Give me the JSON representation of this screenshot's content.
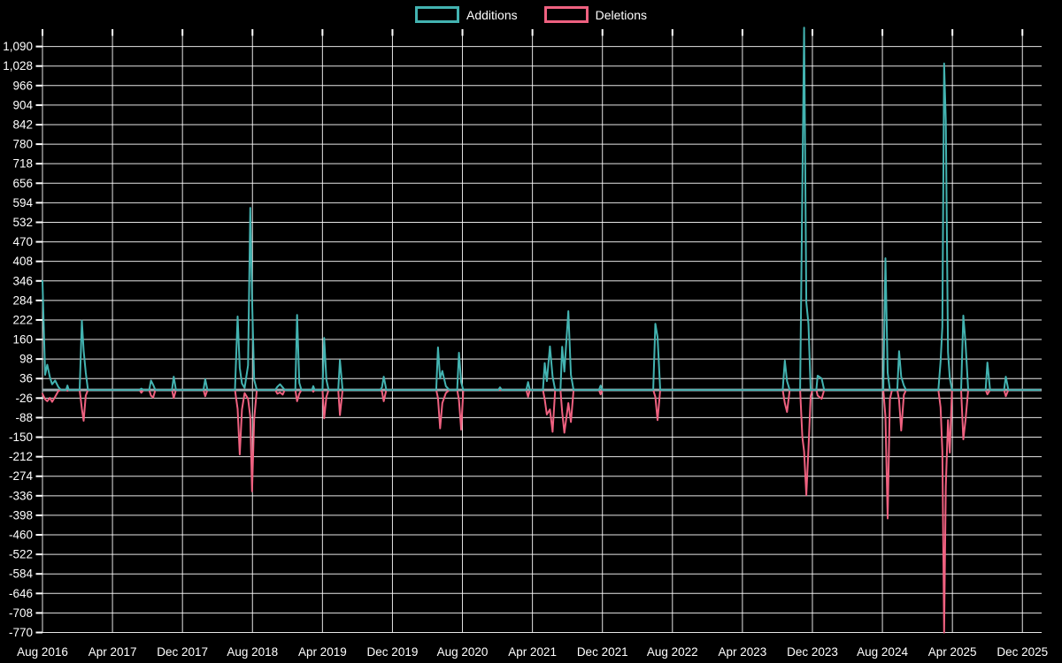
{
  "chart_data": {
    "type": "line",
    "title": "",
    "legend": {
      "position": "top",
      "items": [
        "Additions",
        "Deletions"
      ]
    },
    "grid": {
      "show": true,
      "color": "#ffffff"
    },
    "baseline": {
      "value": 0,
      "color": "#97a8ad"
    },
    "x_axis": {
      "unit": "months since Aug 2016",
      "range": [
        0,
        114.2
      ],
      "ticks": [
        {
          "m": 0,
          "label": "Aug 2016"
        },
        {
          "m": 8,
          "label": "Apr 2017"
        },
        {
          "m": 16,
          "label": "Dec 2017"
        },
        {
          "m": 24,
          "label": "Aug 2018"
        },
        {
          "m": 32,
          "label": "Apr 2019"
        },
        {
          "m": 40,
          "label": "Dec 2019"
        },
        {
          "m": 48,
          "label": "Aug 2020"
        },
        {
          "m": 56,
          "label": "Apr 2021"
        },
        {
          "m": 64,
          "label": "Dec 2021"
        },
        {
          "m": 72,
          "label": "Aug 2022"
        },
        {
          "m": 80,
          "label": "Apr 2023"
        },
        {
          "m": 88,
          "label": "Dec 2023"
        },
        {
          "m": 96,
          "label": "Aug 2024"
        },
        {
          "m": 104,
          "label": "Apr 2025"
        },
        {
          "m": 112,
          "label": "Dec 2025"
        }
      ]
    },
    "y_axis": {
      "range": [
        -770,
        1145
      ],
      "ticks": [
        {
          "v": 1090,
          "label": "1,090"
        },
        {
          "v": 1028,
          "label": "1,028"
        },
        {
          "v": 966,
          "label": "966"
        },
        {
          "v": 904,
          "label": "904"
        },
        {
          "v": 842,
          "label": "842"
        },
        {
          "v": 780,
          "label": "780"
        },
        {
          "v": 718,
          "label": "718"
        },
        {
          "v": 656,
          "label": "656"
        },
        {
          "v": 594,
          "label": "594"
        },
        {
          "v": 532,
          "label": "532"
        },
        {
          "v": 470,
          "label": "470"
        },
        {
          "v": 408,
          "label": "408"
        },
        {
          "v": 346,
          "label": "346"
        },
        {
          "v": 284,
          "label": "284"
        },
        {
          "v": 222,
          "label": "222"
        },
        {
          "v": 160,
          "label": "160"
        },
        {
          "v": 98,
          "label": "98"
        },
        {
          "v": 36,
          "label": "36"
        },
        {
          "v": -26,
          "label": "-26"
        },
        {
          "v": -88,
          "label": "-88"
        },
        {
          "v": -150,
          "label": "-150"
        },
        {
          "v": -212,
          "label": "-212"
        },
        {
          "v": -274,
          "label": "-274"
        },
        {
          "v": -336,
          "label": "-336"
        },
        {
          "v": -398,
          "label": "-398"
        },
        {
          "v": -460,
          "label": "-460"
        },
        {
          "v": -522,
          "label": "-522"
        },
        {
          "v": -584,
          "label": "-584"
        },
        {
          "v": -646,
          "label": "-646"
        },
        {
          "v": -708,
          "label": "-708"
        },
        {
          "v": -770,
          "label": "-770"
        }
      ]
    },
    "series": [
      {
        "name": "Additions",
        "color": "#43b3b1",
        "sample_index": 1
      },
      {
        "name": "Deletions",
        "color": "#ef6180",
        "sample_index": 2
      }
    ],
    "samples_format": [
      "months_since_aug_2016",
      "additions",
      "deletions"
    ],
    "samples": [
      [
        0.0,
        346,
        -12
      ],
      [
        0.3,
        48,
        -30
      ],
      [
        0.55,
        80,
        -36
      ],
      [
        0.85,
        40,
        -25
      ],
      [
        1.1,
        18,
        -38
      ],
      [
        1.45,
        30,
        -22
      ],
      [
        1.8,
        10,
        -4
      ],
      [
        2.1,
        0,
        0
      ],
      [
        2.7,
        0,
        0
      ],
      [
        2.85,
        14,
        -3
      ],
      [
        3.0,
        0,
        0
      ],
      [
        4.25,
        0,
        0
      ],
      [
        4.5,
        220,
        -60
      ],
      [
        4.7,
        125,
        -98
      ],
      [
        4.95,
        55,
        -18
      ],
      [
        5.2,
        0,
        0
      ],
      [
        11.1,
        0,
        0
      ],
      [
        11.3,
        4,
        -9
      ],
      [
        11.55,
        0,
        0
      ],
      [
        12.2,
        0,
        0
      ],
      [
        12.4,
        30,
        -18
      ],
      [
        12.65,
        16,
        -24
      ],
      [
        12.9,
        0,
        0
      ],
      [
        14.8,
        0,
        0
      ],
      [
        15.0,
        42,
        -26
      ],
      [
        15.25,
        0,
        0
      ],
      [
        18.4,
        0,
        0
      ],
      [
        18.6,
        34,
        -20
      ],
      [
        18.85,
        0,
        0
      ],
      [
        22.0,
        0,
        0
      ],
      [
        22.3,
        233,
        -60
      ],
      [
        22.55,
        70,
        -205
      ],
      [
        22.8,
        20,
        -62
      ],
      [
        23.1,
        6,
        -10
      ],
      [
        23.5,
        78,
        -28
      ],
      [
        23.75,
        578,
        -85
      ],
      [
        23.95,
        290,
        -322
      ],
      [
        24.2,
        32,
        -92
      ],
      [
        24.5,
        0,
        0
      ],
      [
        26.6,
        0,
        0
      ],
      [
        26.85,
        10,
        -12
      ],
      [
        27.15,
        18,
        -8
      ],
      [
        27.45,
        8,
        -15
      ],
      [
        27.7,
        0,
        0
      ],
      [
        28.9,
        0,
        0
      ],
      [
        29.1,
        238,
        -36
      ],
      [
        29.35,
        22,
        -12
      ],
      [
        29.6,
        0,
        0
      ],
      [
        30.8,
        0,
        0
      ],
      [
        30.95,
        12,
        -6
      ],
      [
        31.1,
        0,
        0
      ],
      [
        32.0,
        0,
        0
      ],
      [
        32.2,
        165,
        -90
      ],
      [
        32.45,
        32,
        -22
      ],
      [
        32.7,
        0,
        0
      ],
      [
        33.8,
        0,
        0
      ],
      [
        34.0,
        95,
        -80
      ],
      [
        34.3,
        0,
        0
      ],
      [
        38.6,
        0,
        0
      ],
      [
        38.8,
        8,
        -5
      ],
      [
        39.0,
        42,
        -36
      ],
      [
        39.3,
        0,
        0
      ],
      [
        45.0,
        0,
        0
      ],
      [
        45.2,
        135,
        -26
      ],
      [
        45.45,
        36,
        -122
      ],
      [
        45.7,
        60,
        -42
      ],
      [
        46.1,
        12,
        -10
      ],
      [
        46.5,
        0,
        0
      ],
      [
        47.4,
        0,
        0
      ],
      [
        47.6,
        118,
        -32
      ],
      [
        47.85,
        24,
        -126
      ],
      [
        48.1,
        0,
        0
      ],
      [
        52.1,
        0,
        0
      ],
      [
        52.3,
        8,
        0
      ],
      [
        52.5,
        0,
        0
      ],
      [
        55.3,
        0,
        0
      ],
      [
        55.5,
        25,
        -22
      ],
      [
        55.7,
        0,
        0
      ],
      [
        57.2,
        0,
        0
      ],
      [
        57.4,
        85,
        -30
      ],
      [
        57.65,
        28,
        -78
      ],
      [
        58.0,
        138,
        -62
      ],
      [
        58.3,
        42,
        -133
      ],
      [
        58.6,
        0,
        0
      ],
      [
        59.2,
        0,
        0
      ],
      [
        59.4,
        137,
        -70
      ],
      [
        59.65,
        58,
        -136
      ],
      [
        60.1,
        250,
        -42
      ],
      [
        60.4,
        48,
        -102
      ],
      [
        60.7,
        0,
        0
      ],
      [
        63.6,
        0,
        0
      ],
      [
        63.8,
        14,
        -14
      ],
      [
        64.0,
        0,
        0
      ],
      [
        69.8,
        0,
        0
      ],
      [
        70.05,
        210,
        -22
      ],
      [
        70.3,
        168,
        -96
      ],
      [
        70.6,
        0,
        0
      ],
      [
        84.6,
        0,
        0
      ],
      [
        84.85,
        93,
        -42
      ],
      [
        85.1,
        28,
        -70
      ],
      [
        85.4,
        0,
        0
      ],
      [
        86.6,
        0,
        0
      ],
      [
        86.85,
        640,
        -150
      ],
      [
        87.05,
        1150,
        -195
      ],
      [
        87.3,
        278,
        -334
      ],
      [
        87.55,
        210,
        -188
      ],
      [
        87.8,
        0,
        -20
      ],
      [
        88.0,
        0,
        0
      ],
      [
        88.45,
        0,
        0
      ],
      [
        88.6,
        45,
        -18
      ],
      [
        89.05,
        36,
        -28
      ],
      [
        89.35,
        0,
        0
      ],
      [
        96.1,
        0,
        0
      ],
      [
        96.35,
        418,
        -85
      ],
      [
        96.6,
        55,
        -408
      ],
      [
        96.85,
        0,
        -30
      ],
      [
        97.1,
        0,
        0
      ],
      [
        97.7,
        0,
        0
      ],
      [
        97.9,
        123,
        -32
      ],
      [
        98.15,
        42,
        -129
      ],
      [
        98.45,
        14,
        -16
      ],
      [
        98.7,
        0,
        0
      ],
      [
        102.4,
        0,
        0
      ],
      [
        102.65,
        90,
        -55
      ],
      [
        102.85,
        200,
        -195
      ],
      [
        103.05,
        1036,
        -770
      ],
      [
        103.25,
        855,
        -306
      ],
      [
        103.5,
        120,
        -96
      ],
      [
        103.7,
        38,
        -199
      ],
      [
        103.95,
        0,
        0
      ],
      [
        105.0,
        0,
        0
      ],
      [
        105.25,
        236,
        -157
      ],
      [
        105.5,
        148,
        -95
      ],
      [
        105.8,
        0,
        0
      ],
      [
        107.8,
        0,
        0
      ],
      [
        108.0,
        87,
        -14
      ],
      [
        108.3,
        0,
        0
      ],
      [
        109.9,
        0,
        0
      ],
      [
        110.1,
        42,
        -20
      ],
      [
        110.4,
        0,
        0
      ],
      [
        114.0,
        0,
        0
      ]
    ]
  }
}
